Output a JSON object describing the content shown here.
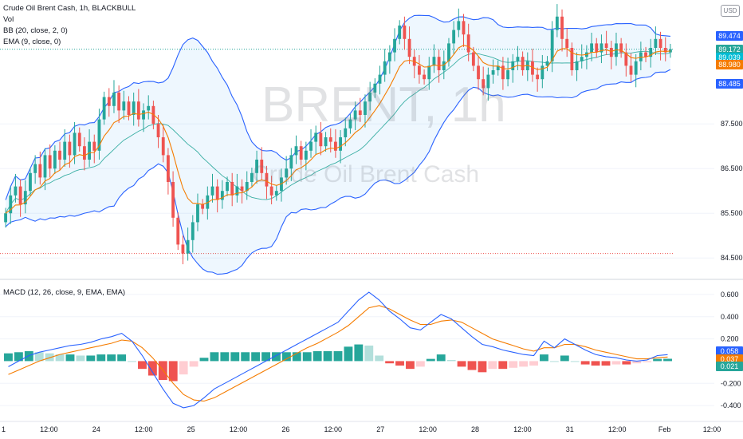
{
  "header": {
    "title": "Crude Oil Brent Cash, 1h, BLACKBULL",
    "vol_label": "Vol",
    "bb_label": "BB (20, close, 2, 0)",
    "ema_label": "EMA (9, close, 0)",
    "macd_label": "MACD (12, 26, close, 9, EMA, EMA)"
  },
  "watermark": {
    "symbol": "BRENT, 1h",
    "name": "Crude Oil Brent Cash"
  },
  "currency_button": "USD",
  "price_tags": [
    {
      "value": "89.474",
      "color": "#2962ff"
    },
    {
      "value": "89.172",
      "color": "#26a69a"
    },
    {
      "value": "16:35",
      "color": "#26a69a"
    },
    {
      "value": "89.039",
      "color": "#00bcd4"
    },
    {
      "value": "88.980",
      "color": "#f57c00"
    },
    {
      "value": "88.485",
      "color": "#2962ff"
    }
  ],
  "macd_tags": [
    {
      "value": "0.058",
      "color": "#2962ff"
    },
    {
      "value": "0.037",
      "color": "#f57c00"
    },
    {
      "value": "0.021",
      "color": "#26a69a"
    }
  ],
  "colors": {
    "up": "#26a69a",
    "down": "#ef5350",
    "bb": "#2962ff",
    "ema": "#f57c00",
    "macd": "#2962ff",
    "signal": "#f57c00"
  },
  "chart_data": [
    {
      "type": "candlestick",
      "title": "Crude Oil Brent Cash, 1h, BLACKBULL",
      "y_ticks": [
        "84.500",
        "85.500",
        "86.500",
        "87.500"
      ],
      "ylim": [
        84.2,
        89.95
      ],
      "series_close": [
        85.5,
        85.9,
        86.1,
        85.7,
        86.0,
        86.4,
        86.6,
        86.3,
        86.8,
        86.5,
        86.9,
        86.7,
        87.1,
        86.8,
        87.3,
        87.0,
        86.7,
        87.1,
        86.9,
        87.6,
        88.1,
        87.9,
        88.2,
        87.8,
        88.0,
        87.7,
        88.0,
        87.6,
        87.8,
        87.9,
        87.5,
        87.2,
        86.8,
        86.2,
        85.4,
        84.8,
        84.6,
        84.9,
        85.3,
        85.7,
        85.6,
        85.9,
        86.1,
        85.8,
        86.0,
        86.2,
        85.9,
        86.1,
        86.0,
        86.2,
        86.4,
        86.7,
        86.4,
        86.1,
        85.9,
        86.0,
        86.3,
        86.5,
        86.8,
        87.0,
        86.7,
        86.9,
        87.1,
        87.3,
        87.0,
        87.2,
        87.1,
        86.9,
        87.2,
        87.4,
        87.6,
        87.8,
        87.7,
        88.0,
        88.2,
        88.4,
        88.6,
        88.9,
        89.1,
        89.4,
        89.7,
        89.4,
        89.0,
        88.8,
        88.6,
        88.5,
        88.8,
        89.0,
        88.7,
        88.9,
        89.3,
        89.6,
        89.8,
        89.5,
        89.1,
        88.8,
        88.5,
        88.3,
        88.6,
        88.7,
        88.8,
        88.5,
        88.7,
        88.9,
        89.0,
        88.7,
        88.9,
        88.6,
        88.5,
        88.8,
        88.9,
        89.6,
        89.9,
        89.4,
        89.2,
        88.7,
        88.9,
        89.0,
        89.1,
        89.3,
        89.1,
        89.3,
        89.2,
        89.0,
        89.3,
        89.1,
        88.8,
        88.6,
        88.9,
        89.1,
        89.0,
        89.2,
        89.4,
        89.2,
        89.1,
        89.17
      ],
      "x_ticks": [
        "1",
        "12:00",
        "24",
        "12:00",
        "25",
        "12:00",
        "26",
        "12:00",
        "27",
        "12:00",
        "28",
        "12:00",
        "31",
        "12:00",
        "Feb",
        "12:00"
      ],
      "overlays": [
        "Vol",
        "BB (20, close, 2, 0)",
        "EMA (9, close, 0)"
      ],
      "last_values": {
        "close": 89.172,
        "bb_upper": 89.474,
        "bb_basis": 89.039,
        "ema": 88.98,
        "bb_lower": 88.485
      }
    },
    {
      "type": "line",
      "title": "MACD (12, 26, close, 9, EMA, EMA)",
      "y_ticks": [
        "0.600",
        "0.400",
        "0.200",
        "-0.200",
        "-0.400"
      ],
      "ylim": [
        -0.5,
        0.7
      ],
      "series": [
        {
          "name": "MACD",
          "values": [
            -0.05,
            0.0,
            0.05,
            0.08,
            0.1,
            0.12,
            0.14,
            0.15,
            0.17,
            0.2,
            0.22,
            0.25,
            0.18,
            0.05,
            -0.1,
            -0.25,
            -0.38,
            -0.42,
            -0.4,
            -0.33,
            -0.25,
            -0.2,
            -0.15,
            -0.1,
            -0.05,
            0.0,
            0.05,
            0.1,
            0.15,
            0.2,
            0.25,
            0.3,
            0.35,
            0.45,
            0.55,
            0.62,
            0.55,
            0.45,
            0.38,
            0.3,
            0.28,
            0.35,
            0.42,
            0.38,
            0.3,
            0.22,
            0.15,
            0.13,
            0.1,
            0.08,
            0.06,
            0.05,
            0.18,
            0.12,
            0.2,
            0.15,
            0.1,
            0.06,
            0.04,
            0.03,
            0.01,
            0.0,
            0.01,
            0.05,
            0.058
          ]
        },
        {
          "name": "Signal",
          "values": [
            -0.12,
            -0.08,
            -0.04,
            0.0,
            0.03,
            0.06,
            0.08,
            0.1,
            0.12,
            0.14,
            0.16,
            0.19,
            0.18,
            0.12,
            0.03,
            -0.08,
            -0.2,
            -0.3,
            -0.35,
            -0.36,
            -0.33,
            -0.28,
            -0.23,
            -0.18,
            -0.13,
            -0.08,
            -0.03,
            0.02,
            0.07,
            0.12,
            0.16,
            0.21,
            0.26,
            0.32,
            0.4,
            0.48,
            0.5,
            0.47,
            0.42,
            0.37,
            0.33,
            0.33,
            0.36,
            0.37,
            0.35,
            0.3,
            0.25,
            0.2,
            0.17,
            0.14,
            0.11,
            0.09,
            0.12,
            0.12,
            0.15,
            0.15,
            0.13,
            0.1,
            0.08,
            0.06,
            0.04,
            0.02,
            0.02,
            0.03,
            0.037
          ]
        },
        {
          "name": "Histogram",
          "values": [
            0.07,
            0.08,
            0.09,
            0.08,
            0.07,
            0.06,
            0.06,
            0.05,
            0.05,
            0.06,
            0.06,
            0.06,
            0.0,
            -0.07,
            -0.13,
            -0.17,
            -0.18,
            -0.12,
            -0.05,
            0.03,
            0.08,
            0.08,
            0.08,
            0.08,
            0.08,
            0.08,
            0.08,
            0.08,
            0.08,
            0.08,
            0.09,
            0.09,
            0.09,
            0.13,
            0.15,
            0.14,
            0.05,
            -0.02,
            -0.04,
            -0.07,
            -0.05,
            0.02,
            0.06,
            0.01,
            -0.05,
            -0.08,
            -0.1,
            -0.07,
            -0.07,
            -0.06,
            -0.05,
            -0.04,
            0.06,
            0.0,
            0.05,
            0.0,
            -0.03,
            -0.04,
            -0.04,
            -0.03,
            -0.03,
            -0.02,
            -0.01,
            0.02,
            0.021
          ]
        }
      ],
      "last_values": {
        "macd": 0.058,
        "signal": 0.037,
        "histogram": 0.021
      }
    }
  ]
}
